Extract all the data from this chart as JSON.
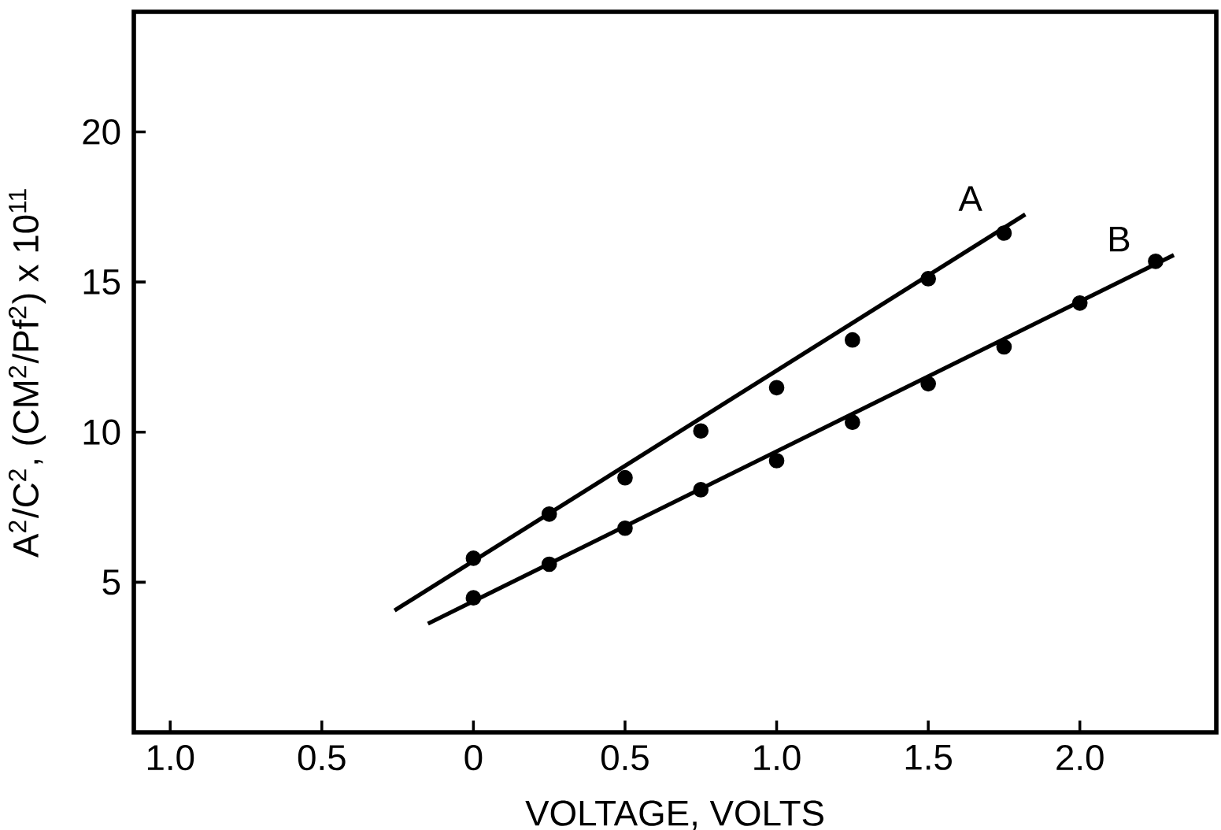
{
  "chart_data": {
    "type": "scatter",
    "xlabel": "VOLTAGE, VOLTS",
    "ylabel": "A$^{2}$/C$^{2}$, (CM$^{2}$/Pf$^{2}$) x 10$^{11}$",
    "xlim": [
      -1.12,
      2.45
    ],
    "ylim": [
      0,
      24
    ],
    "xticks": [
      {
        "value": -1.0,
        "label": "1.0"
      },
      {
        "value": -0.5,
        "label": "0.5"
      },
      {
        "value": 0,
        "label": "0"
      },
      {
        "value": 0.5,
        "label": "0.5"
      },
      {
        "value": 1.0,
        "label": "1.0"
      },
      {
        "value": 1.5,
        "label": "1.5"
      },
      {
        "value": 2.0,
        "label": "2.0"
      }
    ],
    "yticks": [
      5,
      10,
      15,
      20
    ],
    "series": [
      {
        "marker": "circle",
        "color": "#000000",
        "x": [
          0,
          0.25,
          0.5,
          0.75,
          1.0,
          1.25,
          1.5,
          1.75
        ],
        "values": [
          5.8,
          7.27,
          8.48,
          10.04,
          11.48,
          13.07,
          15.11,
          16.63
        ]
      },
      {
        "marker": "circle",
        "color": "#000000",
        "x": [
          0,
          0.25,
          0.5,
          0.75,
          1.0,
          1.25,
          1.5,
          1.75,
          2.0,
          2.25
        ],
        "values": [
          4.48,
          5.6,
          6.8,
          8.08,
          9.05,
          10.33,
          11.61,
          12.84,
          14.3,
          15.69
        ]
      },
      {
        "type": "line",
        "name": "A",
        "marker": "none",
        "color": "#000000",
        "x": [
          -0.26,
          1.82
        ],
        "values": [
          4.06,
          17.25
        ]
      },
      {
        "type": "line",
        "name": "B",
        "marker": "none",
        "color": "#000000",
        "x": [
          -0.15,
          2.31
        ],
        "values": [
          3.62,
          15.9
        ]
      }
    ]
  }
}
